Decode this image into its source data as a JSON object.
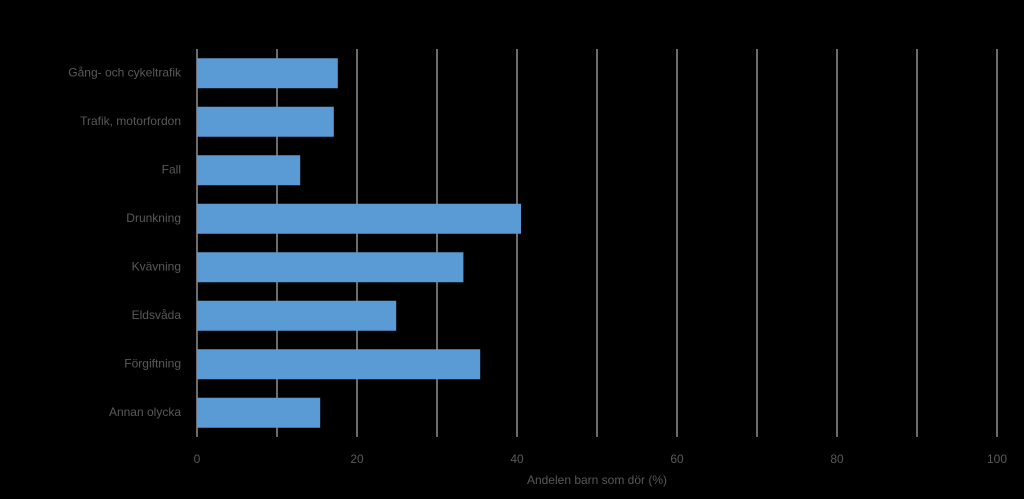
{
  "chart_data": {
    "type": "hbar",
    "categories": [
      "Gång- och cykeltrafik",
      "Trafik, motorfordon",
      "Fall",
      "Drunkning",
      "Kvävning",
      "Eldsvåda",
      "Förgiftning",
      "Annan olycka"
    ],
    "values": [
      17.6,
      17.1,
      12.9,
      40.5,
      33.3,
      24.9,
      35.4,
      15.4
    ],
    "color": "#5b9bd5",
    "xlabel": "Andelen barn som dör (%)",
    "xlim": [
      0,
      100
    ],
    "xticks": [
      0,
      20,
      40,
      60,
      80,
      100
    ],
    "grid": true
  }
}
